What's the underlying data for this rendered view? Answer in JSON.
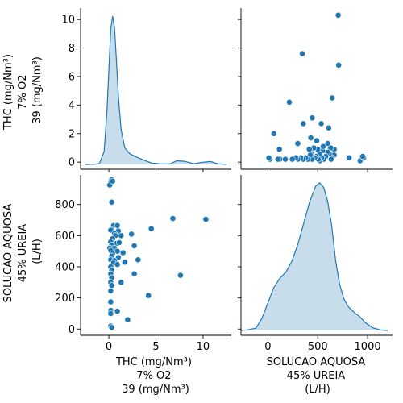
{
  "chart_data": {
    "type": "pairplot",
    "variables": [
      {
        "key": "thc",
        "label_lines": [
          "THC (mg/Nm³)",
          "7% O2",
          "39 (mg/Nm³)"
        ],
        "xlim": [
          -3,
          13
        ],
        "ylim": [
          -0.5,
          10.8
        ],
        "x_ticks": [
          0,
          5,
          10
        ],
        "y_ticks": [
          0,
          2,
          4,
          6,
          8,
          10
        ]
      },
      {
        "key": "ureia",
        "label_lines": [
          "SOLUCAO AQUOSA",
          "45% UREIA",
          "(L/H)"
        ],
        "xlim": [
          -270,
          1250
        ],
        "ylim": [
          -40,
          990
        ],
        "x_ticks": [
          0,
          500,
          1000
        ],
        "y_ticks": [
          0,
          200,
          400,
          600,
          800
        ]
      }
    ],
    "diagonal": [
      {
        "variable": "thc",
        "x": [
          -2.5,
          -1.5,
          -1.0,
          -0.5,
          -0.2,
          0.0,
          0.2,
          0.4,
          0.6,
          0.8,
          1.0,
          1.3,
          1.7,
          2.2,
          2.8,
          3.5,
          4.5,
          5.5,
          6.5,
          7.2,
          8.0,
          9.0,
          10.0,
          10.8,
          11.5,
          12.5
        ],
        "density": [
          0.0,
          0.01,
          0.06,
          0.9,
          3.7,
          6.6,
          9.4,
          10.3,
          9.5,
          7.3,
          4.8,
          2.4,
          1.15,
          0.75,
          0.55,
          0.35,
          0.1,
          0.04,
          0.04,
          0.25,
          0.22,
          0.05,
          0.15,
          0.2,
          0.05,
          0.0
        ]
      },
      {
        "variable": "ureia",
        "x": [
          -270,
          -200,
          -120,
          -60,
          0,
          60,
          120,
          180,
          240,
          300,
          360,
          420,
          480,
          520,
          560,
          600,
          640,
          680,
          720,
          760,
          800,
          860,
          920,
          980,
          1050,
          1130,
          1200
        ],
        "density": [
          0.0,
          0.4,
          1.5,
          8.0,
          18,
          28,
          34,
          38,
          45,
          56,
          70,
          84,
          94,
          96,
          93,
          84,
          68,
          45,
          30,
          21,
          16,
          12,
          9,
          5,
          1.8,
          0.3,
          0.0
        ]
      }
    ],
    "points": [
      {
        "thc": 0.2,
        "ureia": 940
      },
      {
        "thc": 0.1,
        "ureia": 925
      },
      {
        "thc": 0.3,
        "ureia": 815
      },
      {
        "thc": 0.5,
        "ureia": 665
      },
      {
        "thc": 0.9,
        "ureia": 665
      },
      {
        "thc": 0.3,
        "ureia": 640
      },
      {
        "thc": 0.2,
        "ureia": 635
      },
      {
        "thc": 1.0,
        "ureia": 630
      },
      {
        "thc": 0.6,
        "ureia": 615
      },
      {
        "thc": 0.7,
        "ureia": 600
      },
      {
        "thc": 1.3,
        "ureia": 600
      },
      {
        "thc": 2.4,
        "ureia": 610
      },
      {
        "thc": 0.4,
        "ureia": 580
      },
      {
        "thc": 0.2,
        "ureia": 560
      },
      {
        "thc": 0.8,
        "ureia": 550
      },
      {
        "thc": 1.1,
        "ureia": 555
      },
      {
        "thc": 0.3,
        "ureia": 540
      },
      {
        "thc": 0.1,
        "ureia": 520
      },
      {
        "thc": 0.6,
        "ureia": 520
      },
      {
        "thc": 2.7,
        "ureia": 535
      },
      {
        "thc": 0.2,
        "ureia": 505
      },
      {
        "thc": 0.9,
        "ureia": 500
      },
      {
        "thc": 0.4,
        "ureia": 485
      },
      {
        "thc": 1.5,
        "ureia": 490
      },
      {
        "thc": 0.3,
        "ureia": 470
      },
      {
        "thc": 1.0,
        "ureia": 460
      },
      {
        "thc": 0.2,
        "ureia": 445
      },
      {
        "thc": 0.6,
        "ureia": 440
      },
      {
        "thc": 3.1,
        "ureia": 445
      },
      {
        "thc": 0.5,
        "ureia": 425
      },
      {
        "thc": 1.7,
        "ureia": 430
      },
      {
        "thc": 0.9,
        "ureia": 415
      },
      {
        "thc": 0.2,
        "ureia": 400
      },
      {
        "thc": 0.3,
        "ureia": 380
      },
      {
        "thc": 0.2,
        "ureia": 355
      },
      {
        "thc": 2.7,
        "ureia": 355
      },
      {
        "thc": 0.3,
        "ureia": 330
      },
      {
        "thc": 7.6,
        "ureia": 345
      },
      {
        "thc": 0.2,
        "ureia": 300
      },
      {
        "thc": 1.3,
        "ureia": 300
      },
      {
        "thc": 0.3,
        "ureia": 280
      },
      {
        "thc": 0.2,
        "ureia": 245
      },
      {
        "thc": 4.2,
        "ureia": 215
      },
      {
        "thc": 0.2,
        "ureia": 175
      },
      {
        "thc": 0.2,
        "ureia": 120
      },
      {
        "thc": 0.9,
        "ureia": 115
      },
      {
        "thc": 0.2,
        "ureia": 100
      },
      {
        "thc": 2.0,
        "ureia": 60
      },
      {
        "thc": 0.2,
        "ureia": 20
      },
      {
        "thc": 0.3,
        "ureia": 10
      },
      {
        "thc": 4.5,
        "ureia": 645
      },
      {
        "thc": 6.8,
        "ureia": 710
      },
      {
        "thc": 10.3,
        "ureia": 705
      },
      {
        "thc": 0.3,
        "ureia": 960
      },
      {
        "thc": 0.4,
        "ureia": 950
      }
    ],
    "grid": false,
    "legend": "none"
  }
}
